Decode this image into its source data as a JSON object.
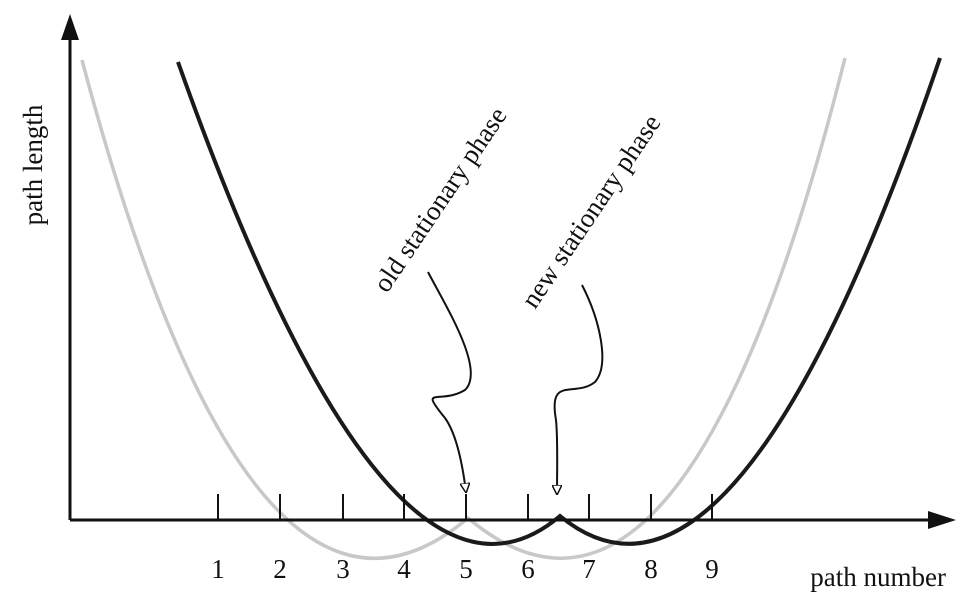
{
  "figure": {
    "y_axis_label": "path length",
    "x_axis_label": "path number",
    "tick_labels": [
      "1",
      "2",
      "3",
      "4",
      "5",
      "6",
      "7",
      "8",
      "9"
    ],
    "annotations": {
      "old": "old stationary phase",
      "new": "new stationary phase"
    },
    "colors": {
      "axis": "#111111",
      "new_curve": "#1a1a1a",
      "old_curve": "#c8c8c8",
      "background": "#ffffff"
    }
  }
}
